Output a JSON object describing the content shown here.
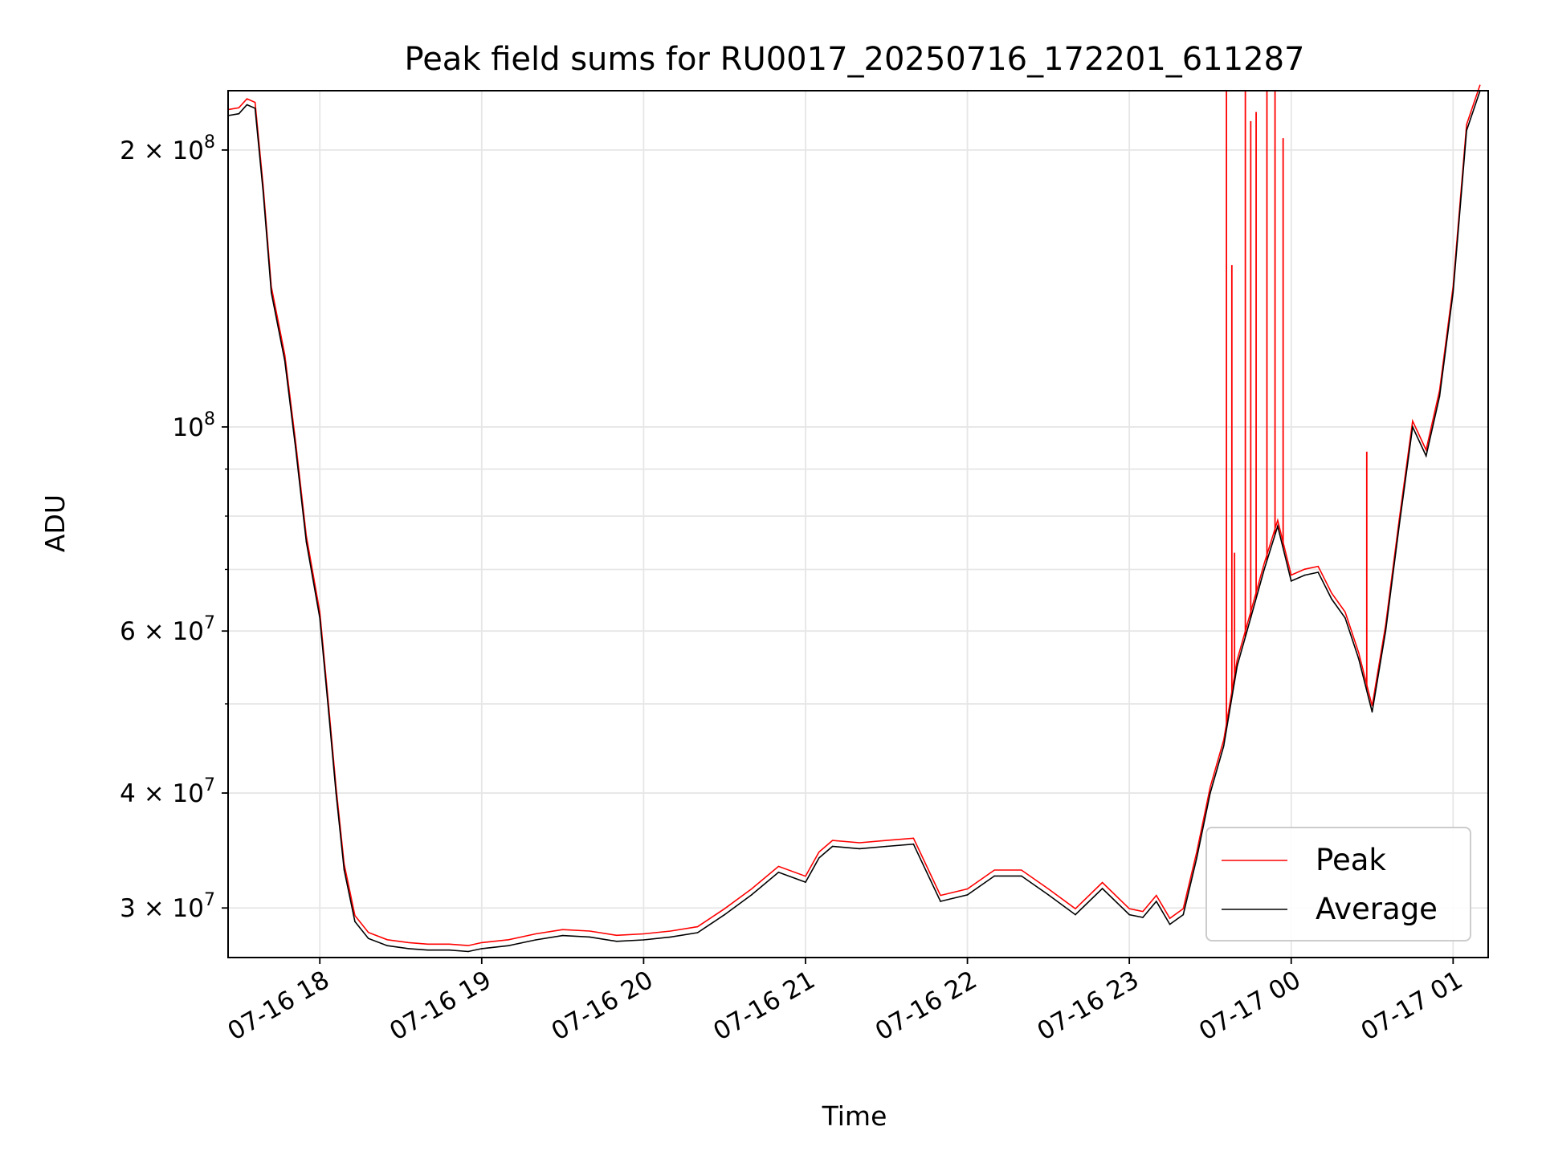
{
  "chart_data": {
    "type": "line",
    "title": "Peak field sums for RU0017_20250716_172201_611287",
    "xlabel": "Time",
    "ylabel": "ADU",
    "yscale": "log",
    "ylim": [
      26500000,
      232000000
    ],
    "xlim": [
      "2025-07-16T17:26",
      "2025-07-17T01:13"
    ],
    "grid": true,
    "legend_position": "lower-right",
    "x_ticks": [
      "07-16 18",
      "07-16 19",
      "07-16 20",
      "07-16 21",
      "07-16 22",
      "07-16 23",
      "07-17 00",
      "07-17 01"
    ],
    "y_ticks": [
      {
        "value": 30000000,
        "mantissa": "3",
        "exp": "7"
      },
      {
        "value": 40000000,
        "mantissa": "4",
        "exp": "7"
      },
      {
        "value": 60000000,
        "mantissa": "6",
        "exp": "7"
      },
      {
        "value": 100000000,
        "mantissa": "",
        "exp": "8"
      },
      {
        "value": 200000000,
        "mantissa": "2",
        "exp": "8"
      }
    ],
    "series": [
      {
        "name": "Average",
        "color": "#000000",
        "x": [
          "2025-07-16T17:26",
          "2025-07-16T17:30",
          "2025-07-16T17:33",
          "2025-07-16T17:36",
          "2025-07-16T17:39",
          "2025-07-16T17:42",
          "2025-07-16T17:47",
          "2025-07-16T17:51",
          "2025-07-16T17:55",
          "2025-07-16T18:00",
          "2025-07-16T18:03",
          "2025-07-16T18:06",
          "2025-07-16T18:09",
          "2025-07-16T18:13",
          "2025-07-16T18:18",
          "2025-07-16T18:25",
          "2025-07-16T18:33",
          "2025-07-16T18:40",
          "2025-07-16T18:48",
          "2025-07-16T18:55",
          "2025-07-16T19:00",
          "2025-07-16T19:10",
          "2025-07-16T19:20",
          "2025-07-16T19:30",
          "2025-07-16T19:40",
          "2025-07-16T19:50",
          "2025-07-16T20:00",
          "2025-07-16T20:10",
          "2025-07-16T20:20",
          "2025-07-16T20:30",
          "2025-07-16T20:40",
          "2025-07-16T20:50",
          "2025-07-16T21:00",
          "2025-07-16T21:05",
          "2025-07-16T21:10",
          "2025-07-16T21:20",
          "2025-07-16T21:30",
          "2025-07-16T21:40",
          "2025-07-16T21:50",
          "2025-07-16T22:00",
          "2025-07-16T22:10",
          "2025-07-16T22:20",
          "2025-07-16T22:30",
          "2025-07-16T22:40",
          "2025-07-16T22:50",
          "2025-07-16T23:00",
          "2025-07-16T23:05",
          "2025-07-16T23:10",
          "2025-07-16T23:15",
          "2025-07-16T23:20",
          "2025-07-16T23:25",
          "2025-07-16T23:30",
          "2025-07-16T23:35",
          "2025-07-16T23:40",
          "2025-07-16T23:45",
          "2025-07-16T23:50",
          "2025-07-16T23:55",
          "2025-07-17T00:00",
          "2025-07-17T00:05",
          "2025-07-17T00:10",
          "2025-07-17T00:15",
          "2025-07-17T00:20",
          "2025-07-17T00:25",
          "2025-07-17T00:30",
          "2025-07-17T00:35",
          "2025-07-17T00:40",
          "2025-07-17T00:45",
          "2025-07-17T00:50",
          "2025-07-17T00:55",
          "2025-07-17T01:00",
          "2025-07-17T01:05",
          "2025-07-17T01:10"
        ],
        "values": [
          218000000,
          219000000,
          224000000,
          222000000,
          180000000,
          140000000,
          118000000,
          95000000,
          75000000,
          62000000,
          50000000,
          40000000,
          33000000,
          29000000,
          27800000,
          27300000,
          27100000,
          27000000,
          27000000,
          26900000,
          27100000,
          27300000,
          27700000,
          28000000,
          27900000,
          27600000,
          27700000,
          27900000,
          28200000,
          29500000,
          31000000,
          32800000,
          32000000,
          34000000,
          35000000,
          34800000,
          35000000,
          35200000,
          30500000,
          31000000,
          32500000,
          32500000,
          31000000,
          29500000,
          31500000,
          29500000,
          29300000,
          30500000,
          28800000,
          29500000,
          34000000,
          40000000,
          45000000,
          55000000,
          62000000,
          70000000,
          78000000,
          68000000,
          69000000,
          69500000,
          65000000,
          62000000,
          56000000,
          49000000,
          60000000,
          78000000,
          100000000,
          93000000,
          108000000,
          140000000,
          210000000,
          232000000
        ]
      },
      {
        "name": "Peak",
        "color": "#ff0000",
        "spikes": [
          {
            "x": "2025-07-16T23:36",
            "value": 232000000
          },
          {
            "x": "2025-07-16T23:38",
            "value": 150000000
          },
          {
            "x": "2025-07-16T23:39",
            "value": 73000000
          },
          {
            "x": "2025-07-16T23:43",
            "value": 232000000
          },
          {
            "x": "2025-07-16T23:45",
            "value": 215000000
          },
          {
            "x": "2025-07-16T23:47",
            "value": 220000000
          },
          {
            "x": "2025-07-16T23:51",
            "value": 232000000
          },
          {
            "x": "2025-07-16T23:54",
            "value": 232000000
          },
          {
            "x": "2025-07-16T23:57",
            "value": 206000000
          },
          {
            "x": "2025-07-17T00:28",
            "value": 94000000
          }
        ]
      }
    ]
  }
}
